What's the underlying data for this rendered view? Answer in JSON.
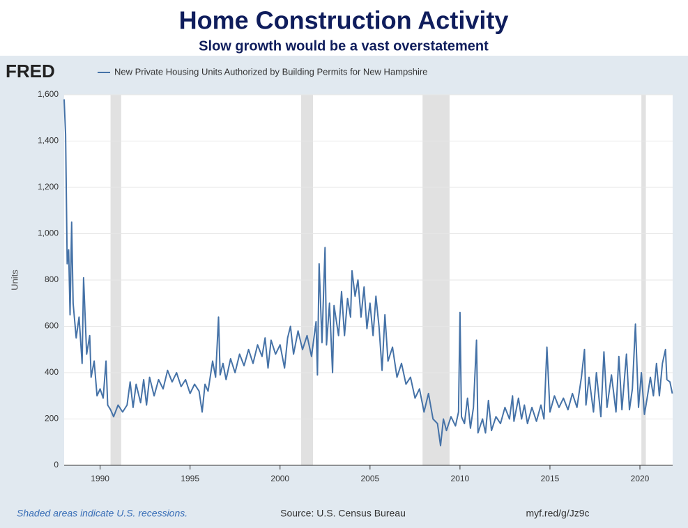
{
  "chart_data": {
    "type": "line",
    "title": "Home Construction Activity",
    "subtitle": "Slow growth would be a vast overstatement",
    "logo": "FRED",
    "ylabel": "Units",
    "footnote": "Shaded areas indicate U.S. recessions.",
    "source": "Source: U.S. Census Bureau",
    "link": "myf.red/g/Jz9c",
    "xlim": [
      1988,
      2021.82
    ],
    "ylim": [
      0,
      1600
    ],
    "xticks": [
      1990,
      1995,
      2000,
      2005,
      2010,
      2015,
      2020
    ],
    "yticks": [
      0,
      200,
      400,
      600,
      800,
      {
        "value": 1000,
        "label": "1,000"
      },
      {
        "value": 1200,
        "label": "1,200"
      },
      {
        "value": 1400,
        "label": "1,400"
      },
      {
        "value": 1600,
        "label": "1,600"
      }
    ],
    "grid": true,
    "recessions": [
      [
        1990.58,
        1991.17
      ],
      [
        2001.17,
        2001.83
      ],
      [
        2007.92,
        2009.42
      ],
      [
        2020.08,
        2020.33
      ]
    ],
    "x": [
      1988.0,
      1988.08,
      1988.17,
      1988.25,
      1988.33,
      1988.42,
      1988.5,
      1988.67,
      1988.83,
      1989.0,
      1989.08,
      1989.25,
      1989.42,
      1989.5,
      1989.67,
      1989.83,
      1990.0,
      1990.17,
      1990.33,
      1990.42,
      1990.58,
      1990.75,
      1991.0,
      1991.25,
      1991.5,
      1991.67,
      1991.83,
      1992.0,
      1992.25,
      1992.42,
      1992.58,
      1992.75,
      1993.0,
      1993.25,
      1993.5,
      1993.75,
      1994.0,
      1994.25,
      1994.5,
      1994.75,
      1995.0,
      1995.25,
      1995.5,
      1995.67,
      1995.83,
      1996.0,
      1996.25,
      1996.42,
      1996.58,
      1996.67,
      1996.83,
      1997.0,
      1997.25,
      1997.5,
      1997.75,
      1998.0,
      1998.25,
      1998.5,
      1998.75,
      1999.0,
      1999.17,
      1999.33,
      1999.5,
      1999.75,
      2000.0,
      2000.25,
      2000.42,
      2000.58,
      2000.75,
      2001.0,
      2001.25,
      2001.5,
      2001.75,
      2002.0,
      2002.08,
      2002.17,
      2002.33,
      2002.5,
      2002.58,
      2002.75,
      2002.92,
      2003.0,
      2003.25,
      2003.42,
      2003.58,
      2003.75,
      2003.92,
      2004.0,
      2004.17,
      2004.33,
      2004.5,
      2004.67,
      2004.83,
      2005.0,
      2005.17,
      2005.33,
      2005.5,
      2005.67,
      2005.83,
      2006.0,
      2006.25,
      2006.5,
      2006.75,
      2007.0,
      2007.25,
      2007.5,
      2007.75,
      2008.0,
      2008.25,
      2008.5,
      2008.75,
      2008.92,
      2009.08,
      2009.25,
      2009.5,
      2009.75,
      2009.92,
      2010.0,
      2010.08,
      2010.25,
      2010.42,
      2010.58,
      2010.75,
      2010.92,
      2011.0,
      2011.25,
      2011.42,
      2011.58,
      2011.75,
      2012.0,
      2012.25,
      2012.5,
      2012.75,
      2012.92,
      2013.0,
      2013.25,
      2013.42,
      2013.58,
      2013.75,
      2014.0,
      2014.25,
      2014.5,
      2014.67,
      2014.83,
      2015.0,
      2015.25,
      2015.5,
      2015.75,
      2016.0,
      2016.25,
      2016.5,
      2016.75,
      2016.92,
      2017.0,
      2017.17,
      2017.42,
      2017.58,
      2017.83,
      2018.0,
      2018.17,
      2018.42,
      2018.67,
      2018.83,
      2019.0,
      2019.25,
      2019.42,
      2019.58,
      2019.75,
      2019.92,
      2020.08,
      2020.25,
      2020.42,
      2020.58,
      2020.75,
      2020.92,
      2021.08,
      2021.25,
      2021.42,
      2021.5,
      2021.67,
      2021.8
    ],
    "series": [
      {
        "name": "New Private Housing Units Authorized by Building Permits for New Hampshire",
        "color": "#4572a7",
        "values": [
          1580,
          1430,
          870,
          930,
          650,
          1050,
          700,
          550,
          640,
          440,
          810,
          480,
          560,
          380,
          450,
          300,
          330,
          290,
          450,
          260,
          240,
          210,
          260,
          230,
          260,
          360,
          250,
          350,
          270,
          370,
          260,
          380,
          300,
          370,
          330,
          410,
          360,
          400,
          340,
          370,
          310,
          350,
          320,
          230,
          350,
          320,
          450,
          380,
          640,
          390,
          440,
          370,
          460,
          400,
          480,
          430,
          500,
          440,
          520,
          470,
          550,
          420,
          540,
          480,
          520,
          420,
          550,
          600,
          480,
          580,
          500,
          560,
          470,
          620,
          390,
          870,
          530,
          940,
          520,
          700,
          400,
          690,
          560,
          750,
          560,
          720,
          640,
          840,
          730,
          800,
          640,
          770,
          590,
          700,
          560,
          730,
          600,
          410,
          650,
          450,
          510,
          380,
          440,
          350,
          380,
          290,
          330,
          230,
          310,
          200,
          180,
          85,
          200,
          150,
          210,
          170,
          230,
          660,
          210,
          180,
          290,
          160,
          250,
          540,
          140,
          200,
          140,
          280,
          150,
          210,
          180,
          250,
          200,
          300,
          190,
          290,
          200,
          260,
          180,
          250,
          190,
          260,
          200,
          510,
          230,
          300,
          250,
          290,
          240,
          310,
          250,
          380,
          500,
          260,
          380,
          230,
          400,
          210,
          490,
          250,
          390,
          230,
          470,
          240,
          480,
          240,
          330,
          610,
          250,
          400,
          220,
          300,
          380,
          300,
          440,
          300,
          440,
          500,
          370,
          360,
          310
        ]
      }
    ]
  }
}
